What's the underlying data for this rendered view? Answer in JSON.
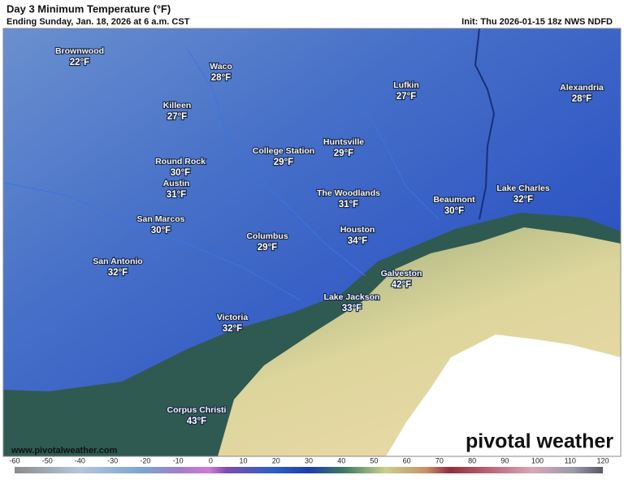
{
  "header": {
    "title": "Day 3 Minimum Temperature (°F)",
    "subtitle": "Ending Sunday, Jan. 18, 2026 at 6 a.m. CST",
    "init": "Init: Thu 2026-01-15 18z NWS NDFD"
  },
  "cities": [
    {
      "name": "Brownwood",
      "temp": "22°F"
    },
    {
      "name": "Waco",
      "temp": "28°F"
    },
    {
      "name": "Lufkin",
      "temp": "27°F"
    },
    {
      "name": "Alexandria",
      "temp": "28°F"
    },
    {
      "name": "Killeen",
      "temp": "27°F"
    },
    {
      "name": "Huntsville",
      "temp": "29°F"
    },
    {
      "name": "College Station",
      "temp": "29°F"
    },
    {
      "name": "Round Rock",
      "temp": "30°F"
    },
    {
      "name": "Austin",
      "temp": "31°F"
    },
    {
      "name": "The Woodlands",
      "temp": "31°F"
    },
    {
      "name": "Beaumont",
      "temp": "30°F"
    },
    {
      "name": "Lake Charles",
      "temp": "32°F"
    },
    {
      "name": "San Marcos",
      "temp": "30°F"
    },
    {
      "name": "Columbus",
      "temp": "29°F"
    },
    {
      "name": "Houston",
      "temp": "34°F"
    },
    {
      "name": "San Antonio",
      "temp": "32°F"
    },
    {
      "name": "Galveston",
      "temp": "42°F"
    },
    {
      "name": "Lake Jackson",
      "temp": "33°F"
    },
    {
      "name": "Victoria",
      "temp": "32°F"
    },
    {
      "name": "Corpus Christi",
      "temp": "43°F"
    }
  ],
  "watermark": "www.pivotalweather.com",
  "logo": "pivotal weather",
  "colorbar": {
    "ticks": [
      -60,
      -50,
      -40,
      -30,
      -20,
      -10,
      0,
      10,
      20,
      30,
      40,
      50,
      60,
      70,
      80,
      90,
      100,
      110,
      120
    ]
  }
}
